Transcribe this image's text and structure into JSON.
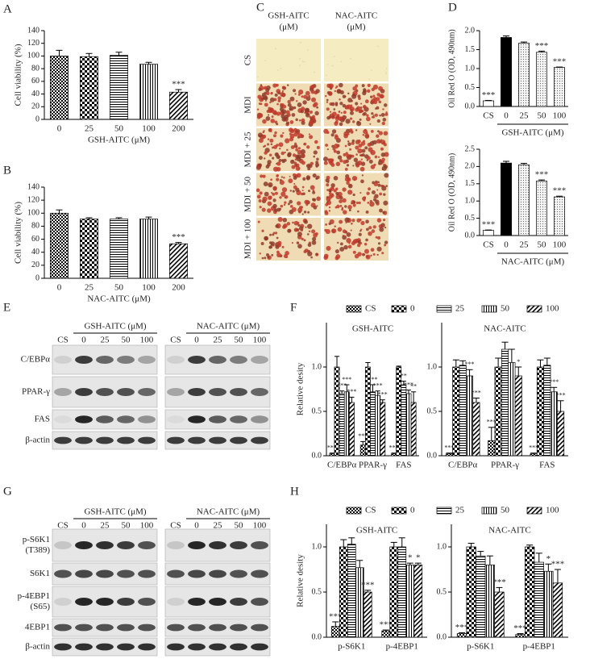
{
  "panel_labels": [
    "A",
    "B",
    "C",
    "D",
    "E",
    "F",
    "G",
    "H"
  ],
  "micrographs": {
    "columns": [
      [
        "GSH-AITC",
        "(μM)"
      ],
      [
        "NAC-AITC",
        "(μM)"
      ]
    ],
    "rows": [
      "CS",
      "MDI",
      "MDI + 25",
      "MDI + 50",
      "MDI + 100"
    ]
  },
  "blots": [
    {
      "groups": [
        "GSH-AITC (μM)",
        "NAC-AITC (μM)"
      ],
      "lanes": [
        "CS",
        "0",
        "25",
        "50",
        "100"
      ],
      "rows": [
        [
          "C/EBPα"
        ],
        [
          "PPAR-γ"
        ],
        [
          "FAS"
        ],
        [
          "β-actin"
        ]
      ]
    },
    {
      "groups": [
        "GSH-AITC (μM)",
        "NAC-AITC (μM)"
      ],
      "lanes": [
        "CS",
        "0",
        "25",
        "50",
        "100"
      ],
      "rows": [
        [
          "p-S6K1",
          "(T389)"
        ],
        [
          "S6K1"
        ],
        [
          "p-4EBP1",
          "(S65)"
        ],
        [
          "4EBP1"
        ],
        [
          "β-actin"
        ]
      ]
    }
  ],
  "chart_data": [
    {
      "type": "bar",
      "ylabel": "Cell viability (%)",
      "xlabel": "GSH-AITC (μM)",
      "categories": [
        "0",
        "25",
        "50",
        "100",
        "200"
      ],
      "values": [
        100,
        99,
        101,
        87,
        43
      ],
      "errors": [
        9,
        5,
        5,
        3,
        4
      ],
      "sig": [
        null,
        null,
        null,
        null,
        "***"
      ],
      "ylim": [
        0,
        140
      ],
      "yticks": [
        0,
        20,
        40,
        60,
        80,
        100,
        120,
        140
      ]
    },
    {
      "type": "bar",
      "ylabel": "Cell viability (%)",
      "xlabel": "NAC-AITC (μM)",
      "categories": [
        "0",
        "25",
        "50",
        "100",
        "200"
      ],
      "values": [
        100,
        91,
        91,
        91,
        53
      ],
      "errors": [
        5,
        2,
        2,
        3,
        2
      ],
      "sig": [
        null,
        null,
        null,
        null,
        "***"
      ],
      "ylim": [
        0,
        140
      ],
      "yticks": [
        0,
        20,
        40,
        60,
        80,
        100,
        120,
        140
      ]
    },
    {
      "type": "bar",
      "ylabel": "Oil Red O (OD, 490nm)",
      "xlabel": "GSH-AITC (μM)",
      "categories": [
        "CS",
        "0",
        "25",
        "50",
        "100"
      ],
      "values": [
        0.15,
        1.82,
        1.67,
        1.43,
        1.03
      ],
      "errors": [
        0.01,
        0.04,
        0.03,
        0.03,
        0.01
      ],
      "sig": [
        "***",
        null,
        null,
        "***",
        "***"
      ],
      "ylim": [
        0,
        2.0
      ],
      "yticks": [
        {
          "value": 0,
          "label": "0.0"
        },
        0.5,
        {
          "value": 1,
          "label": "1.0"
        },
        1.5,
        {
          "value": 2,
          "label": "2.0"
        }
      ]
    },
    {
      "type": "bar",
      "ylabel": "Oil Red O (OD, 490nm)",
      "xlabel": "NAC-AITC (μM)",
      "categories": [
        "CS",
        "0",
        "25",
        "50",
        "100"
      ],
      "values": [
        0.15,
        2.1,
        2.05,
        1.58,
        1.12
      ],
      "errors": [
        0.01,
        0.05,
        0.04,
        0.03,
        0.02
      ],
      "sig": [
        "***",
        null,
        null,
        "***",
        "***"
      ],
      "ylim": [
        0,
        2.5
      ],
      "yticks": [
        {
          "value": 0,
          "label": "0.0"
        },
        0.5,
        {
          "value": 1,
          "label": "1.0"
        },
        1.5,
        {
          "value": 2,
          "label": "2.0"
        },
        2.5
      ]
    },
    {
      "type": "bar",
      "title": "GSH-AITC",
      "ylabel": "Relative desity",
      "categories": [
        "C/EBPα",
        "PPAR-γ",
        "FAS"
      ],
      "ylim": [
        0,
        1.5
      ],
      "yticks": [
        {
          "value": 0,
          "label": "0.0"
        },
        0.5,
        {
          "value": 1,
          "label": "1.0"
        }
      ],
      "series": [
        {
          "name": "CS",
          "values": [
            0.02,
            0.12,
            0.02
          ],
          "errors": [
            0.01,
            0.04,
            0.01
          ],
          "sig": [
            "***",
            "***",
            "***"
          ]
        },
        {
          "name": "0",
          "values": [
            1.0,
            1.0,
            1.0
          ],
          "errors": [
            0.12,
            0.05,
            0.01
          ]
        },
        {
          "name": "25",
          "values": [
            0.7,
            0.72,
            0.8
          ],
          "errors": [
            0.03,
            0.08,
            0.04
          ],
          "sig": [
            "***",
            "***",
            "**"
          ]
        },
        {
          "name": "50",
          "values": [
            0.72,
            0.68,
            0.7
          ],
          "errors": [
            0.08,
            0.05,
            0.04
          ],
          "sig": [
            "***",
            "***",
            "***"
          ]
        },
        {
          "name": "100",
          "values": [
            0.6,
            0.6,
            0.6
          ],
          "errors": [
            0.06,
            0.03,
            0.12
          ],
          "sig": [
            "***",
            "***",
            "**"
          ]
        }
      ]
    },
    {
      "type": "bar",
      "title": "NAC-AITC",
      "categories": [
        "C/EBPα",
        "PPAR-γ",
        "FAS"
      ],
      "ylim": [
        0,
        1.5
      ],
      "yticks": [
        {
          "value": 0,
          "label": "0.0"
        },
        0.5,
        {
          "value": 1,
          "label": "1.0"
        }
      ],
      "series": [
        {
          "values": [
            0.02,
            0.17,
            0.02
          ],
          "errors": [
            0.01,
            0.15,
            0.01
          ],
          "sig": [
            "***",
            "***",
            "***"
          ]
        },
        {
          "values": [
            1.0,
            1.0,
            1.0
          ],
          "errors": [
            0.08,
            0.1,
            0.08
          ]
        },
        {
          "values": [
            1.02,
            1.2,
            1.02
          ],
          "errors": [
            0.05,
            0.08,
            0.08
          ]
        },
        {
          "values": [
            0.9,
            1.05,
            0.72
          ],
          "errors": [
            0.07,
            0.15,
            0.05
          ],
          "sig": [
            "***",
            null,
            "***"
          ]
        },
        {
          "values": [
            0.6,
            0.9,
            0.5
          ],
          "errors": [
            0.05,
            0.1,
            0.12
          ],
          "sig": [
            "***",
            "*",
            "***"
          ]
        }
      ]
    },
    {
      "type": "bar",
      "title": "GSH-AITC",
      "ylabel": "Relative desity",
      "categories": [
        "p-S6K1",
        "p-4EBP1"
      ],
      "ylim": [
        0,
        1.25
      ],
      "yticks": [
        {
          "value": 0,
          "label": "0.0"
        },
        0.5,
        {
          "value": 1,
          "label": "1.0"
        }
      ],
      "series": [
        {
          "name": "CS",
          "values": [
            0.12,
            0.07
          ],
          "errors": [
            0.05,
            0.01
          ],
          "sig": [
            "***",
            "***"
          ]
        },
        {
          "name": "0",
          "values": [
            1.0,
            1.0
          ],
          "errors": [
            0.08,
            0.05
          ]
        },
        {
          "name": "25",
          "values": [
            1.03,
            1.0
          ],
          "errors": [
            0.07,
            0.1
          ]
        },
        {
          "name": "50",
          "values": [
            0.77,
            0.8
          ],
          "errors": [
            0.08,
            0.02
          ],
          "sig": [
            null,
            "*"
          ]
        },
        {
          "name": "100",
          "values": [
            0.5,
            0.8
          ],
          "errors": [
            0.02,
            0.02
          ],
          "sig": [
            "***",
            "*"
          ]
        }
      ]
    },
    {
      "type": "bar",
      "title": "NAC-AITC",
      "categories": [
        "p-S6K1",
        "p-4EBP1"
      ],
      "ylim": [
        0,
        1.25
      ],
      "yticks": [
        {
          "value": 0,
          "label": "0.0"
        },
        0.5,
        {
          "value": 1,
          "label": "1.0"
        }
      ],
      "series": [
        {
          "values": [
            0.04,
            0.03
          ],
          "errors": [
            0.01,
            0.01
          ],
          "sig": [
            "***",
            "***"
          ]
        },
        {
          "values": [
            1.0,
            1.0
          ],
          "errors": [
            0.04,
            0.02
          ]
        },
        {
          "values": [
            0.9,
            0.83
          ],
          "errors": [
            0.05,
            0.1
          ]
        },
        {
          "values": [
            0.8,
            0.73
          ],
          "errors": [
            0.1,
            0.08
          ],
          "sig": [
            null,
            "*"
          ]
        },
        {
          "values": [
            0.5,
            0.6
          ],
          "errors": [
            0.05,
            0.15
          ],
          "sig": [
            "***",
            "***"
          ]
        }
      ]
    }
  ]
}
